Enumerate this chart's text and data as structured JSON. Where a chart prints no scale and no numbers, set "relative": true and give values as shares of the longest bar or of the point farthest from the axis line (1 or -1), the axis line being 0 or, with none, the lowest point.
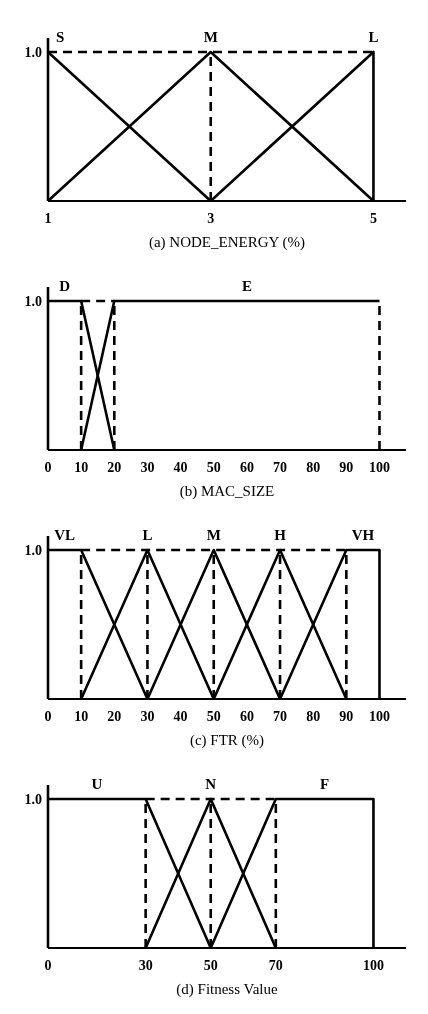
{
  "chart_data": [
    {
      "type": "line",
      "xlabel": "(a) NODE_ENERGY (%)",
      "relative": true,
      "marker": "none",
      "xlim": [
        1,
        5.4
      ],
      "xticks": [
        1,
        3,
        5
      ],
      "annotations": [
        "1.0"
      ],
      "series": [
        {
          "name": "S",
          "color": "#000000",
          "x": [
            1,
            3
          ],
          "values": [
            1,
            0
          ]
        },
        {
          "name": "M",
          "color": "#000000",
          "x": [
            1,
            3,
            5
          ],
          "values": [
            0,
            1,
            0
          ]
        },
        {
          "name": "L",
          "color": "#000000",
          "x": [
            3,
            5,
            5
          ],
          "values": [
            0,
            1,
            0
          ]
        },
        {
          "color": "#000000",
          "line_style": "dashed",
          "x": [
            1,
            5
          ],
          "values": [
            1,
            1
          ]
        }
      ],
      "ref_lines": [
        {
          "axis": "x",
          "value": 3,
          "color": "#000000",
          "line_style": "dashed"
        }
      ]
    },
    {
      "type": "line",
      "xlabel": "(b) MAC_SIZE",
      "relative": true,
      "marker": "none",
      "xlim": [
        0,
        108
      ],
      "xticks": [
        0,
        10,
        20,
        30,
        40,
        50,
        60,
        70,
        80,
        90,
        100
      ],
      "annotations": [
        "1.0"
      ],
      "series": [
        {
          "name": "D",
          "color": "#000000",
          "x": [
            0,
            10,
            20
          ],
          "values": [
            1,
            1,
            0
          ]
        },
        {
          "name": "E",
          "color": "#000000",
          "x": [
            10,
            20,
            100
          ],
          "values": [
            0,
            1,
            1
          ]
        },
        {
          "color": "#000000",
          "line_style": "dashed",
          "x": [
            10,
            20
          ],
          "values": [
            1,
            1
          ]
        }
      ],
      "ref_lines": [
        {
          "axis": "x",
          "value": 10,
          "color": "#000000",
          "line_style": "dashed"
        },
        {
          "axis": "x",
          "value": 20,
          "color": "#000000",
          "line_style": "dashed"
        },
        {
          "axis": "x",
          "value": 100,
          "color": "#000000",
          "line_style": "dashed"
        }
      ]
    },
    {
      "type": "line",
      "xlabel": "(c) FTR (%)",
      "relative": true,
      "marker": "none",
      "xlim": [
        0,
        108
      ],
      "xticks": [
        0,
        10,
        20,
        30,
        40,
        50,
        60,
        70,
        80,
        90,
        100
      ],
      "annotations": [
        "1.0"
      ],
      "series": [
        {
          "name": "VL",
          "color": "#000000",
          "x": [
            0,
            10,
            30
          ],
          "values": [
            1,
            1,
            0
          ]
        },
        {
          "name": "L",
          "color": "#000000",
          "x": [
            10,
            30,
            50
          ],
          "values": [
            0,
            1,
            0
          ]
        },
        {
          "name": "M",
          "color": "#000000",
          "x": [
            30,
            50,
            70
          ],
          "values": [
            0,
            1,
            0
          ]
        },
        {
          "name": "H",
          "color": "#000000",
          "x": [
            50,
            70,
            90
          ],
          "values": [
            0,
            1,
            0
          ]
        },
        {
          "name": "VH",
          "color": "#000000",
          "x": [
            70,
            90,
            100,
            100
          ],
          "values": [
            0,
            1,
            1,
            0
          ]
        },
        {
          "color": "#000000",
          "line_style": "dashed",
          "x": [
            10,
            90
          ],
          "values": [
            1,
            1
          ]
        }
      ],
      "ref_lines": [
        {
          "axis": "x",
          "value": 10,
          "color": "#000000",
          "line_style": "dashed"
        },
        {
          "axis": "x",
          "value": 30,
          "color": "#000000",
          "line_style": "dashed"
        },
        {
          "axis": "x",
          "value": 50,
          "color": "#000000",
          "line_style": "dashed"
        },
        {
          "axis": "x",
          "value": 70,
          "color": "#000000",
          "line_style": "dashed"
        },
        {
          "axis": "x",
          "value": 90,
          "color": "#000000",
          "line_style": "dashed"
        }
      ]
    },
    {
      "type": "line",
      "xlabel": "(d) Fitness Value",
      "relative": true,
      "marker": "none",
      "xlim": [
        0,
        110
      ],
      "xticks": [
        0,
        30,
        50,
        70,
        100
      ],
      "annotations": [
        "1.0"
      ],
      "series": [
        {
          "name": "U",
          "color": "#000000",
          "x": [
            0,
            30,
            50
          ],
          "values": [
            1,
            1,
            0
          ]
        },
        {
          "name": "N",
          "color": "#000000",
          "x": [
            30,
            50,
            70
          ],
          "values": [
            0,
            1,
            0
          ]
        },
        {
          "name": "F",
          "color": "#000000",
          "x": [
            50,
            70,
            100,
            100
          ],
          "values": [
            0,
            1,
            1,
            0
          ]
        },
        {
          "color": "#000000",
          "line_style": "dashed",
          "x": [
            30,
            70
          ],
          "values": [
            1,
            1
          ]
        }
      ],
      "ref_lines": [
        {
          "axis": "x",
          "value": 30,
          "color": "#000000",
          "line_style": "dashed"
        },
        {
          "axis": "x",
          "value": 50,
          "color": "#000000",
          "line_style": "dashed"
        },
        {
          "axis": "x",
          "value": 70,
          "color": "#000000",
          "line_style": "dashed"
        }
      ]
    }
  ]
}
